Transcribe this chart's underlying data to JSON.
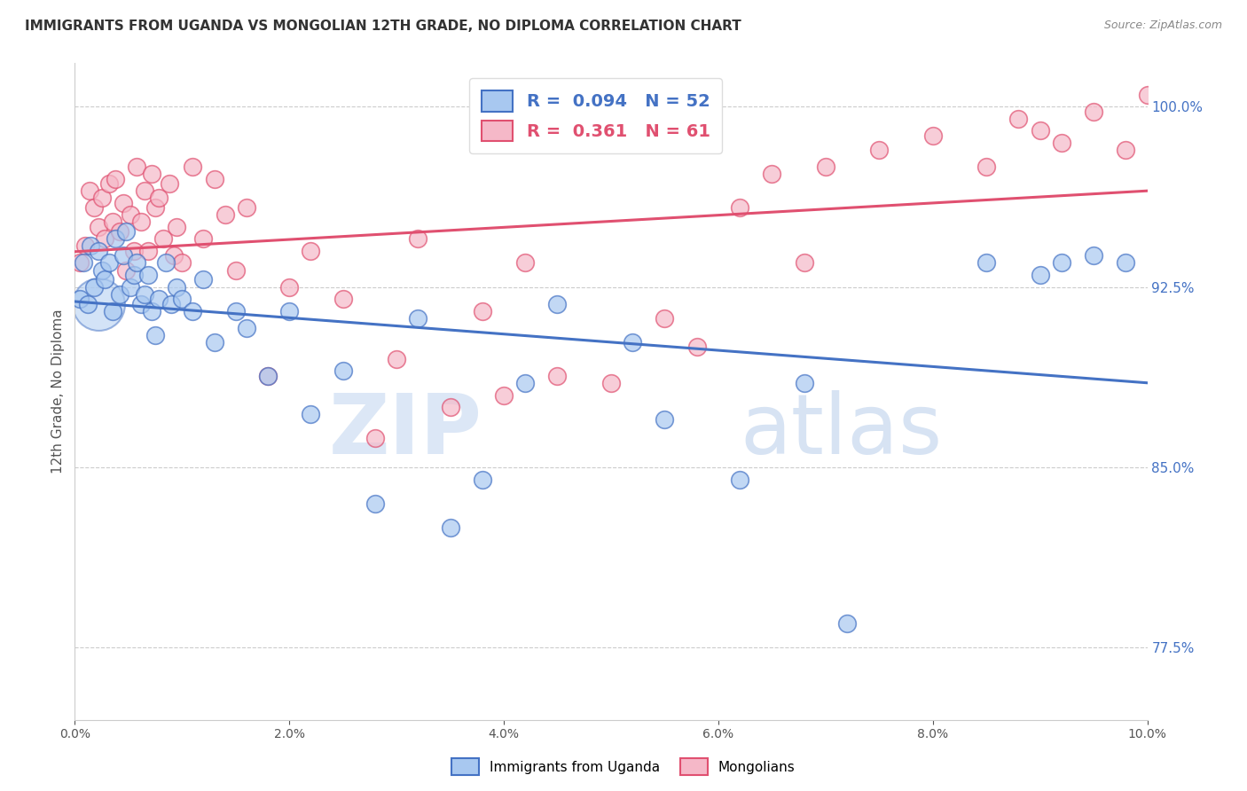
{
  "title": "IMMIGRANTS FROM UGANDA VS MONGOLIAN 12TH GRADE, NO DIPLOMA CORRELATION CHART",
  "source": "Source: ZipAtlas.com",
  "ylabel": "12th Grade, No Diploma",
  "x_min": 0.0,
  "x_max": 10.0,
  "y_min": 74.5,
  "y_max": 101.8,
  "x_ticks": [
    0.0,
    2.0,
    4.0,
    6.0,
    8.0,
    10.0
  ],
  "y_ticks_right": [
    77.5,
    85.0,
    92.5,
    100.0
  ],
  "legend_label1": "Immigrants from Uganda",
  "legend_label2": "Mongolians",
  "R1": 0.094,
  "N1": 52,
  "R2": 0.361,
  "N2": 61,
  "color1": "#a8c8f0",
  "color2": "#f5b8c8",
  "line_color1": "#4472c4",
  "line_color2": "#e05070",
  "watermark_zip": "ZIP",
  "watermark_atlas": "atlas",
  "blue_x": [
    0.05,
    0.08,
    0.12,
    0.15,
    0.18,
    0.22,
    0.25,
    0.28,
    0.32,
    0.35,
    0.38,
    0.42,
    0.45,
    0.48,
    0.52,
    0.55,
    0.58,
    0.62,
    0.65,
    0.68,
    0.72,
    0.75,
    0.78,
    0.85,
    0.9,
    0.95,
    1.0,
    1.1,
    1.2,
    1.3,
    1.5,
    1.6,
    1.8,
    2.0,
    2.2,
    2.5,
    2.8,
    3.2,
    3.5,
    3.8,
    4.2,
    4.5,
    5.2,
    5.5,
    6.2,
    6.8,
    7.2,
    8.5,
    9.0,
    9.2,
    9.5,
    9.8
  ],
  "blue_y": [
    92.0,
    93.5,
    91.8,
    94.2,
    92.5,
    94.0,
    93.2,
    92.8,
    93.5,
    91.5,
    94.5,
    92.2,
    93.8,
    94.8,
    92.5,
    93.0,
    93.5,
    91.8,
    92.2,
    93.0,
    91.5,
    90.5,
    92.0,
    93.5,
    91.8,
    92.5,
    92.0,
    91.5,
    92.8,
    90.2,
    91.5,
    90.8,
    88.8,
    91.5,
    87.2,
    89.0,
    83.5,
    91.2,
    82.5,
    84.5,
    88.5,
    91.8,
    90.2,
    87.0,
    84.5,
    88.5,
    78.5,
    93.5,
    93.0,
    93.5,
    93.8,
    93.5
  ],
  "blue_sizes": [
    30,
    30,
    30,
    30,
    30,
    30,
    30,
    30,
    30,
    30,
    30,
    30,
    30,
    30,
    30,
    30,
    30,
    30,
    30,
    30,
    30,
    500,
    30,
    30,
    30,
    30,
    30,
    30,
    30,
    30,
    30,
    30,
    30,
    30,
    30,
    30,
    30,
    30,
    30,
    30,
    30,
    30,
    30,
    30,
    30,
    30,
    30,
    30,
    30,
    30,
    30,
    30
  ],
  "pink_x": [
    0.05,
    0.1,
    0.14,
    0.18,
    0.22,
    0.25,
    0.28,
    0.32,
    0.35,
    0.38,
    0.42,
    0.45,
    0.48,
    0.52,
    0.55,
    0.58,
    0.62,
    0.65,
    0.68,
    0.72,
    0.75,
    0.78,
    0.82,
    0.88,
    0.92,
    0.95,
    1.0,
    1.1,
    1.2,
    1.3,
    1.4,
    1.5,
    1.6,
    1.8,
    2.0,
    2.2,
    2.5,
    2.8,
    3.0,
    3.2,
    3.5,
    3.8,
    4.0,
    4.2,
    4.5,
    5.0,
    5.5,
    5.8,
    6.2,
    6.5,
    7.0,
    7.5,
    8.0,
    8.5,
    8.8,
    9.0,
    9.2,
    9.5,
    9.8,
    10.0,
    6.8
  ],
  "pink_y": [
    93.5,
    94.2,
    96.5,
    95.8,
    95.0,
    96.2,
    94.5,
    96.8,
    95.2,
    97.0,
    94.8,
    96.0,
    93.2,
    95.5,
    94.0,
    97.5,
    95.2,
    96.5,
    94.0,
    97.2,
    95.8,
    96.2,
    94.5,
    96.8,
    93.8,
    95.0,
    93.5,
    97.5,
    94.5,
    97.0,
    95.5,
    93.2,
    95.8,
    88.8,
    92.5,
    94.0,
    92.0,
    86.2,
    89.5,
    94.5,
    87.5,
    91.5,
    88.0,
    93.5,
    88.8,
    88.5,
    91.2,
    90.0,
    95.8,
    97.2,
    97.5,
    98.2,
    98.8,
    97.5,
    99.5,
    99.0,
    98.5,
    99.8,
    98.2,
    100.5,
    93.5
  ],
  "pink_sizes": [
    30,
    30,
    30,
    30,
    30,
    30,
    30,
    30,
    30,
    30,
    30,
    30,
    30,
    30,
    30,
    30,
    30,
    30,
    30,
    30,
    30,
    30,
    30,
    30,
    30,
    30,
    30,
    30,
    30,
    30,
    30,
    30,
    30,
    30,
    30,
    30,
    30,
    30,
    30,
    30,
    30,
    30,
    30,
    30,
    30,
    30,
    30,
    30,
    30,
    30,
    30,
    30,
    30,
    30,
    30,
    30,
    30,
    30,
    30,
    30,
    30
  ]
}
